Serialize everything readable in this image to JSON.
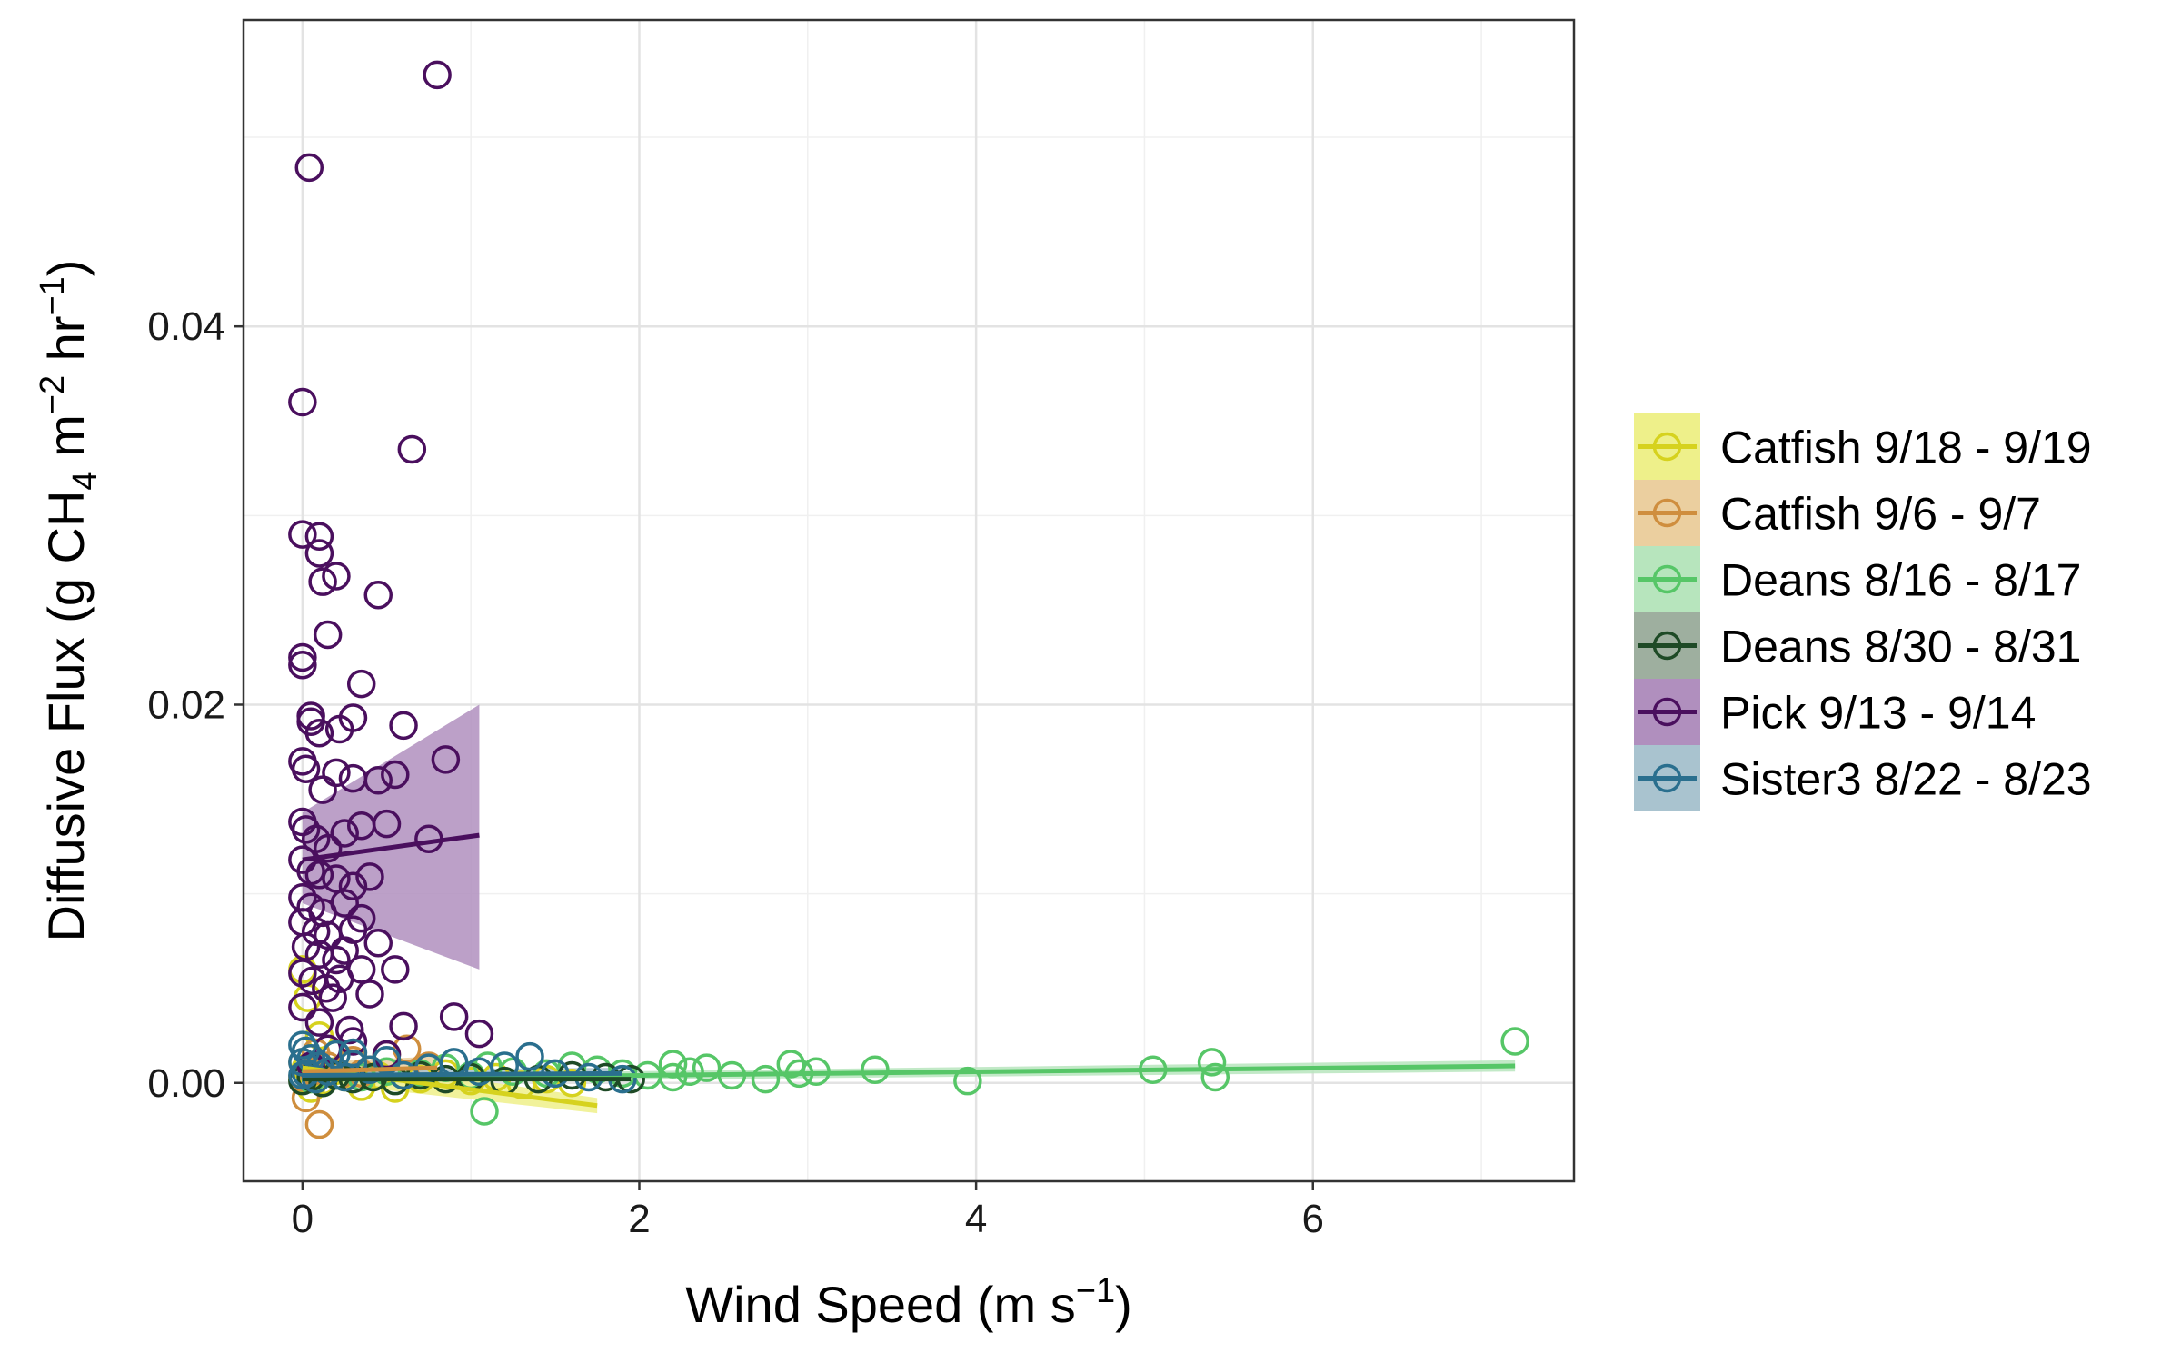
{
  "chart_data": {
    "type": "scatter",
    "xlabel": {
      "main": "Wind Speed (m s",
      "sup": "−1",
      "close": ")"
    },
    "ylabel": {
      "main": "Diffusive Flux (g CH",
      "sub": "4",
      "mid": " m",
      "sup1": "−2",
      "mid2": " hr",
      "sup2": "−1",
      "close": ")"
    },
    "xlim": [
      -0.35,
      7.55
    ],
    "ylim": [
      -0.0052,
      0.0562
    ],
    "x_ticks": [
      {
        "value": 0,
        "label": "0"
      },
      {
        "value": 2,
        "label": "2"
      },
      {
        "value": 4,
        "label": "4"
      },
      {
        "value": 6,
        "label": "6"
      }
    ],
    "y_ticks": [
      {
        "value": 0,
        "label": "0.00"
      },
      {
        "value": 0.02,
        "label": "0.02"
      },
      {
        "value": 0.04,
        "label": "0.04"
      }
    ],
    "grid": true,
    "legend_position": "right",
    "series": [
      {
        "name": "Catfish 9/18 - 9/19",
        "color": "#d6d21e",
        "band_color": "#eef08a",
        "x": [
          0.0,
          0.02,
          0.05,
          0.08,
          0.12,
          0.18,
          0.25,
          0.35,
          0.45,
          0.55,
          0.7,
          0.85,
          1.0,
          1.15,
          1.3,
          1.45,
          1.6,
          0.0,
          0.03,
          0.1
        ],
        "y": [
          0.0002,
          0.0008,
          -0.0003,
          0.0005,
          0.0001,
          0.0006,
          0.0003,
          -0.0002,
          0.0004,
          -0.0003,
          0.0002,
          0.0005,
          0.0001,
          0.0003,
          -0.0001,
          0.0002,
          0.0,
          0.006,
          0.0045,
          0.0025
        ],
        "fit": {
          "x": [
            0.0,
            1.75
          ],
          "y": [
            0.0008,
            -0.0012
          ],
          "lo": [
            0.0001,
            -0.0016
          ],
          "hi": [
            0.0015,
            -0.0008
          ]
        }
      },
      {
        "name": "Catfish 9/6 - 9/7",
        "color": "#cf8e3e",
        "band_color": "#ebcf9f",
        "x": [
          0.0,
          0.02,
          0.06,
          0.1,
          0.15,
          0.22,
          0.3,
          0.4,
          0.5,
          0.62,
          0.75,
          0.0,
          0.08,
          0.35
        ],
        "y": [
          0.0003,
          -0.0008,
          0.0006,
          -0.0022,
          0.0009,
          0.0004,
          0.0012,
          0.0007,
          0.0015,
          0.0018,
          0.0009,
          0.0011,
          0.0016,
          0.0005
        ],
        "fit": {
          "x": [
            0.0,
            0.8
          ],
          "y": [
            0.0006,
            0.0008
          ],
          "lo": [
            0.0001,
            0.0002
          ],
          "hi": [
            0.0011,
            0.0014
          ]
        }
      },
      {
        "name": "Deans 8/16 - 8/17",
        "color": "#56c667",
        "band_color": "#b7e5bd",
        "x": [
          0.05,
          0.2,
          0.35,
          0.5,
          0.7,
          0.85,
          1.0,
          1.1,
          1.25,
          1.45,
          1.6,
          1.75,
          1.9,
          2.05,
          2.2,
          2.2,
          2.3,
          2.4,
          2.55,
          2.75,
          2.9,
          2.95,
          3.05,
          3.4,
          3.95,
          5.05,
          5.4,
          5.42,
          7.2,
          1.08
        ],
        "y": [
          0.0002,
          0.0004,
          0.0003,
          0.0006,
          0.0005,
          0.0008,
          0.0004,
          0.0009,
          0.0006,
          0.0005,
          0.0009,
          0.0007,
          0.0005,
          0.0004,
          0.001,
          0.0003,
          0.0006,
          0.0008,
          0.0004,
          0.0002,
          0.001,
          0.0005,
          0.0006,
          0.0007,
          0.0001,
          0.0007,
          0.0011,
          0.0003,
          0.0022,
          -0.0015
        ],
        "fit": {
          "x": [
            0.0,
            7.2
          ],
          "y": [
            0.0002,
            0.0009
          ],
          "lo": [
            0.0,
            0.0006
          ],
          "hi": [
            0.0004,
            0.0012
          ]
        }
      },
      {
        "name": "Deans 8/30 - 8/31",
        "color": "#1e4a26",
        "band_color": "#9eaf9f",
        "x": [
          0.0,
          0.05,
          0.12,
          0.2,
          0.3,
          0.42,
          0.55,
          0.7,
          0.85,
          1.0,
          1.2,
          1.4,
          1.6,
          1.8,
          1.95
        ],
        "y": [
          0.0001,
          0.0003,
          0.0,
          0.0004,
          0.0002,
          0.0003,
          0.0001,
          0.0004,
          0.0002,
          0.0003,
          0.0001,
          0.0002,
          0.0004,
          0.0003,
          0.0002
        ],
        "fit": {
          "x": [
            0.0,
            1.95
          ],
          "y": [
            0.0002,
            0.0002
          ],
          "lo": [
            0.0001,
            0.0001
          ],
          "hi": [
            0.0003,
            0.0003
          ]
        }
      },
      {
        "name": "Pick 9/13 - 9/14",
        "color": "#4a0f5e",
        "band_color": "#b08fbe",
        "x": [
          0.8,
          0.04,
          0.0,
          0.65,
          0.0,
          0.1,
          0.1,
          0.12,
          0.2,
          0.45,
          0.15,
          0.0,
          0.0,
          0.35,
          0.05,
          0.3,
          0.05,
          0.1,
          0.22,
          0.6,
          0.0,
          0.02,
          0.12,
          0.2,
          0.3,
          0.45,
          0.55,
          0.85,
          0.0,
          0.02,
          0.08,
          0.15,
          0.25,
          0.35,
          0.5,
          0.75,
          0.0,
          0.05,
          0.1,
          0.2,
          0.3,
          0.4,
          0.0,
          0.05,
          0.12,
          0.25,
          0.35,
          0.0,
          0.08,
          0.15,
          0.3,
          0.45,
          0.02,
          0.1,
          0.2,
          0.25,
          0.35,
          0.0,
          0.06,
          0.14,
          0.22,
          0.4,
          0.55,
          0.9,
          0.0,
          0.1,
          0.18,
          0.28,
          0.6,
          1.05,
          0.15,
          0.3,
          0.5,
          0.05
        ],
        "y": [
          0.0533,
          0.0484,
          0.036,
          0.0335,
          0.029,
          0.0289,
          0.028,
          0.0265,
          0.0268,
          0.0258,
          0.0237,
          0.0225,
          0.0221,
          0.0211,
          0.0194,
          0.0193,
          0.0191,
          0.0185,
          0.0187,
          0.0189,
          0.017,
          0.0166,
          0.0155,
          0.0164,
          0.0161,
          0.016,
          0.0163,
          0.0171,
          0.0138,
          0.0134,
          0.0129,
          0.0124,
          0.0132,
          0.0136,
          0.0137,
          0.0129,
          0.0118,
          0.0112,
          0.011,
          0.0108,
          0.0104,
          0.0109,
          0.0098,
          0.0093,
          0.009,
          0.0095,
          0.0087,
          0.0085,
          0.008,
          0.0078,
          0.0081,
          0.0074,
          0.0072,
          0.0068,
          0.0065,
          0.007,
          0.006,
          0.0058,
          0.0054,
          0.005,
          0.0055,
          0.0047,
          0.006,
          0.0035,
          0.004,
          0.0032,
          0.0045,
          0.0028,
          0.003,
          0.0026,
          0.0018,
          0.0022,
          0.0015,
          0.0009
        ],
        "fit": {
          "x": [
            0.0,
            1.05
          ],
          "y": [
            0.0118,
            0.0131
          ],
          "lo": [
            0.0095,
            0.006
          ],
          "hi": [
            0.0143,
            0.02
          ]
        }
      },
      {
        "name": "Sister3 8/22 - 8/23",
        "color": "#2a6f8e",
        "band_color": "#a9c3cf",
        "x": [
          0.0,
          0.0,
          0.02,
          0.05,
          0.08,
          0.1,
          0.15,
          0.2,
          0.25,
          0.3,
          0.4,
          0.5,
          0.6,
          0.75,
          0.9,
          1.05,
          1.2,
          1.35,
          1.5,
          1.7,
          1.9,
          0.0,
          0.02,
          0.3
        ],
        "y": [
          0.002,
          0.0011,
          0.0005,
          0.0013,
          0.0002,
          0.0009,
          0.0006,
          0.0015,
          0.0003,
          0.001,
          0.0007,
          0.0012,
          0.0004,
          0.0008,
          0.0011,
          0.0006,
          0.0009,
          0.0014,
          0.0005,
          0.0003,
          0.0002,
          0.0004,
          0.0017,
          0.0016
        ],
        "fit": {
          "x": [
            0.0,
            1.9
          ],
          "y": [
            0.0004,
            0.0005
          ],
          "lo": [
            0.0001,
            0.0002
          ],
          "hi": [
            0.0007,
            0.0008
          ]
        }
      }
    ]
  }
}
